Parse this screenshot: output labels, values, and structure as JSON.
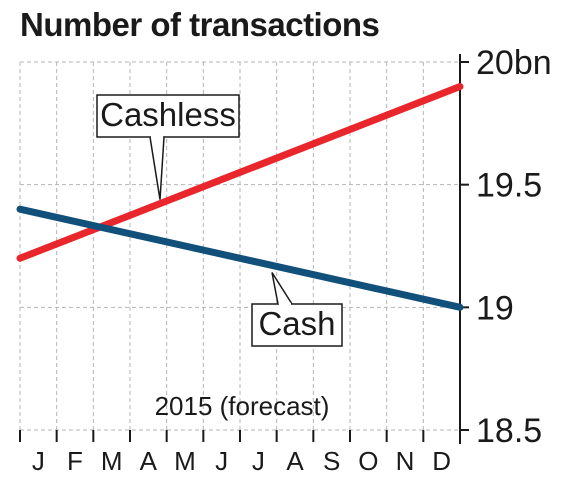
{
  "chart_data": {
    "type": "line",
    "title": "Number of transactions",
    "categories": [
      "J",
      "F",
      "M",
      "A",
      "M",
      "J",
      "J",
      "A",
      "S",
      "O",
      "N",
      "D"
    ],
    "x_start": "J",
    "x_end": "D",
    "series": [
      {
        "name": "Cashless",
        "color": "#e8262b",
        "start": 19.2,
        "end": 19.9
      },
      {
        "name": "Cash",
        "color": "#11507a",
        "start": 19.4,
        "end": 19.0
      }
    ],
    "ylim": [
      18.5,
      20.0
    ],
    "yticks": [
      "18.5",
      "19",
      "19.5",
      "20bn"
    ],
    "annotation": "2015 (forecast)",
    "grid": true,
    "y_axis_side": "right"
  }
}
